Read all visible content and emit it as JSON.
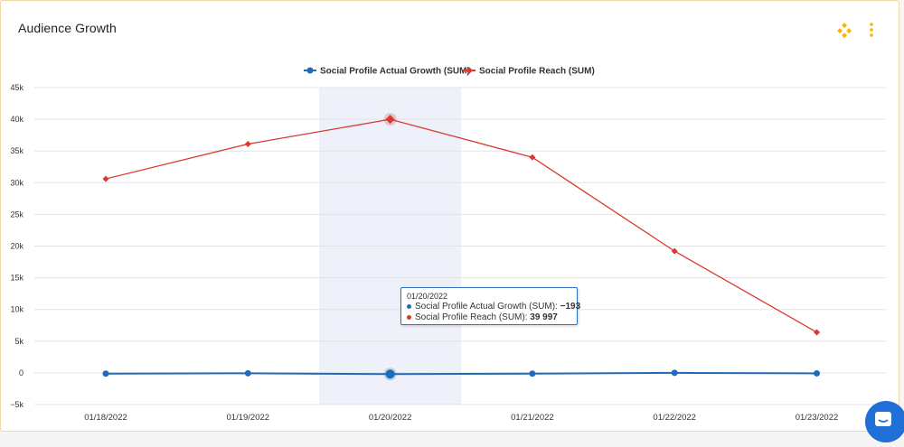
{
  "card": {
    "title": "Audience Growth"
  },
  "icons": {
    "menu": "diamonds-icon",
    "more": "kebab-icon",
    "chat": "chat-icon"
  },
  "colors": {
    "growth": "#1f6bb8",
    "reach": "#d93a2f",
    "highlight": "#eef1fa",
    "accent": "#f5b800"
  },
  "tooltip": {
    "date": "01/20/2022",
    "rows": [
      {
        "label": "Social Profile Actual Growth (SUM): ",
        "value": "−193"
      },
      {
        "label": "Social Profile Reach (SUM): ",
        "value": "39 997"
      }
    ]
  },
  "chart_data": {
    "type": "line",
    "categories": [
      "01/18/2022",
      "01/19/2022",
      "01/20/2022",
      "01/21/2022",
      "01/22/2022",
      "01/23/2022"
    ],
    "series": [
      {
        "name": "Social Profile Actual Growth (SUM)",
        "values": [
          -120,
          -60,
          -193,
          -120,
          0,
          -80
        ]
      },
      {
        "name": "Social Profile Reach (SUM)",
        "values": [
          30600,
          36100,
          39997,
          34000,
          19200,
          6400
        ]
      }
    ],
    "ylim": [
      -5000,
      45000
    ],
    "yticks": [
      -5000,
      0,
      5000,
      10000,
      15000,
      20000,
      25000,
      30000,
      35000,
      40000,
      45000
    ],
    "ytick_labels": [
      "−5k",
      "0",
      "5k",
      "10k",
      "15k",
      "20k",
      "25k",
      "30k",
      "35k",
      "40k",
      "45k"
    ],
    "highlight_index": 2,
    "legend": "top-center",
    "grid": true
  }
}
